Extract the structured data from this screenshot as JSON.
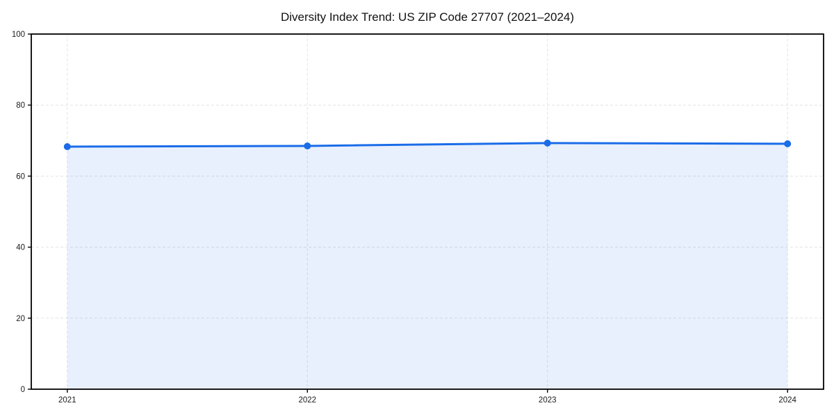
{
  "chart_data": {
    "type": "area",
    "title": "Diversity Index Trend: US ZIP Code 27707 (2021–2024)",
    "x": [
      2021,
      2022,
      2023,
      2024
    ],
    "series": [
      {
        "name": "Diversity Index",
        "values": [
          68.3,
          68.5,
          69.3,
          69.1
        ]
      }
    ],
    "xlabel": "",
    "ylabel": "",
    "xlim": [
      2020.85,
      2024.15
    ],
    "ylim": [
      0,
      100
    ],
    "xticks": [
      "2021",
      "2022",
      "2023",
      "2024"
    ],
    "xtick_positions": [
      2021,
      2022,
      2023,
      2024
    ],
    "yticks": [
      "0",
      "20",
      "40",
      "60",
      "80",
      "100"
    ],
    "ytick_positions": [
      0,
      20,
      40,
      60,
      80,
      100
    ],
    "grid": true,
    "grid_style": "dashed",
    "legend": "none",
    "marker": "circle",
    "colors": {
      "line": "#1a6ce8",
      "marker": "#1a6ce8",
      "fill": "#1a6ce8",
      "fill_opacity": 0.1,
      "grid": "#e3e3e3",
      "axis": "#000000",
      "title_text": "#111111",
      "tick_text": "#1a1a1a",
      "background": "#ffffff"
    }
  }
}
